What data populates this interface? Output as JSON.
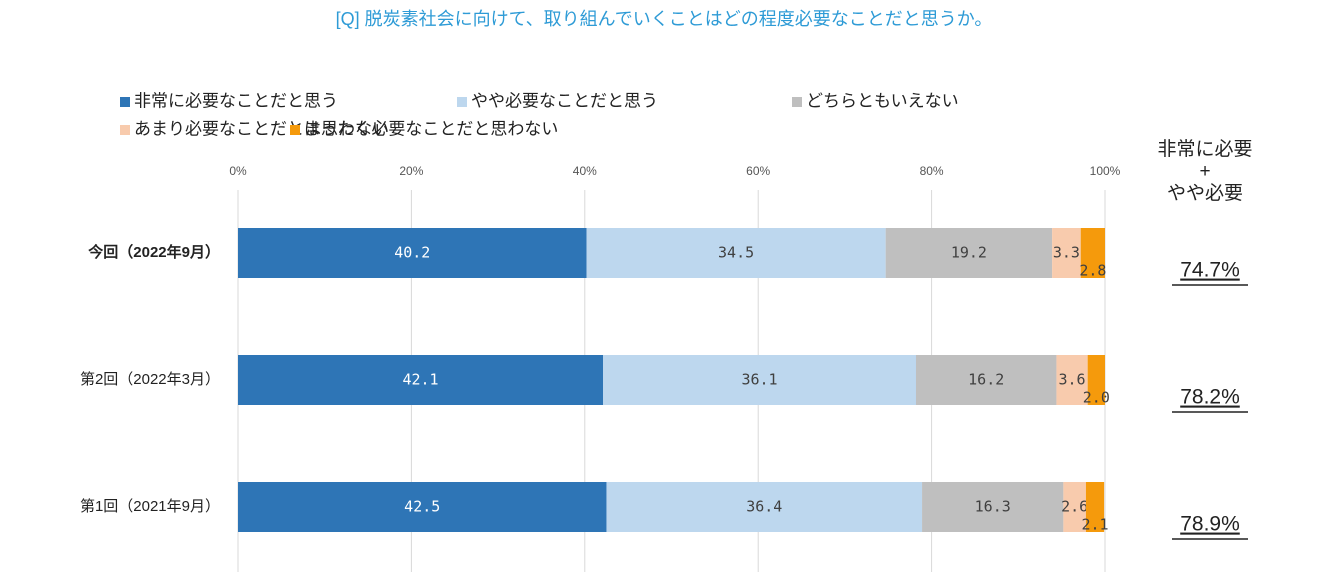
{
  "chart_data": {
    "type": "stacked_barh",
    "title": "[Q] 脱炭素社会に向けて、取り組んでいくことはどの程度必要なことだと思うか。",
    "categories": [
      "今回（2022年9月）",
      "第2回（2022年3月）",
      "第1回（2021年9月）"
    ],
    "series": [
      {
        "name": "非常に必要なことだと思う",
        "color": "#2e75b6",
        "values": [
          40.2,
          42.1,
          42.5
        ]
      },
      {
        "name": "やや必要なことだと思う",
        "color": "#bdd7ee",
        "values": [
          34.5,
          36.1,
          36.4
        ]
      },
      {
        "name": "どちらともいえない",
        "color": "#bfbfbf",
        "values": [
          19.2,
          16.2,
          16.3
        ]
      },
      {
        "name": "あまり必要なことだとは思わない",
        "color": "#f8cbad",
        "values": [
          3.3,
          3.6,
          2.6
        ]
      },
      {
        "name": "まったく必要なことだと思わない",
        "color": "#f59a0c",
        "values": [
          2.8,
          2.0,
          2.1
        ],
        "value_labels": [
          "2.8",
          "2.0",
          "2.1"
        ]
      }
    ],
    "xlim": [
      0,
      100
    ],
    "xticks": [
      {
        "value": 0,
        "label": "0%"
      },
      {
        "value": 20,
        "label": "20%"
      },
      {
        "value": 40,
        "label": "40%"
      },
      {
        "value": 60,
        "label": "60%"
      },
      {
        "value": 80,
        "label": "80%"
      },
      {
        "value": 100,
        "label": "100%"
      }
    ],
    "grid": true,
    "summary_title": [
      "非常に必要",
      "+",
      "やや必要"
    ],
    "summary_labels": [
      "74.7%",
      "78.2%",
      "78.9%"
    ]
  }
}
